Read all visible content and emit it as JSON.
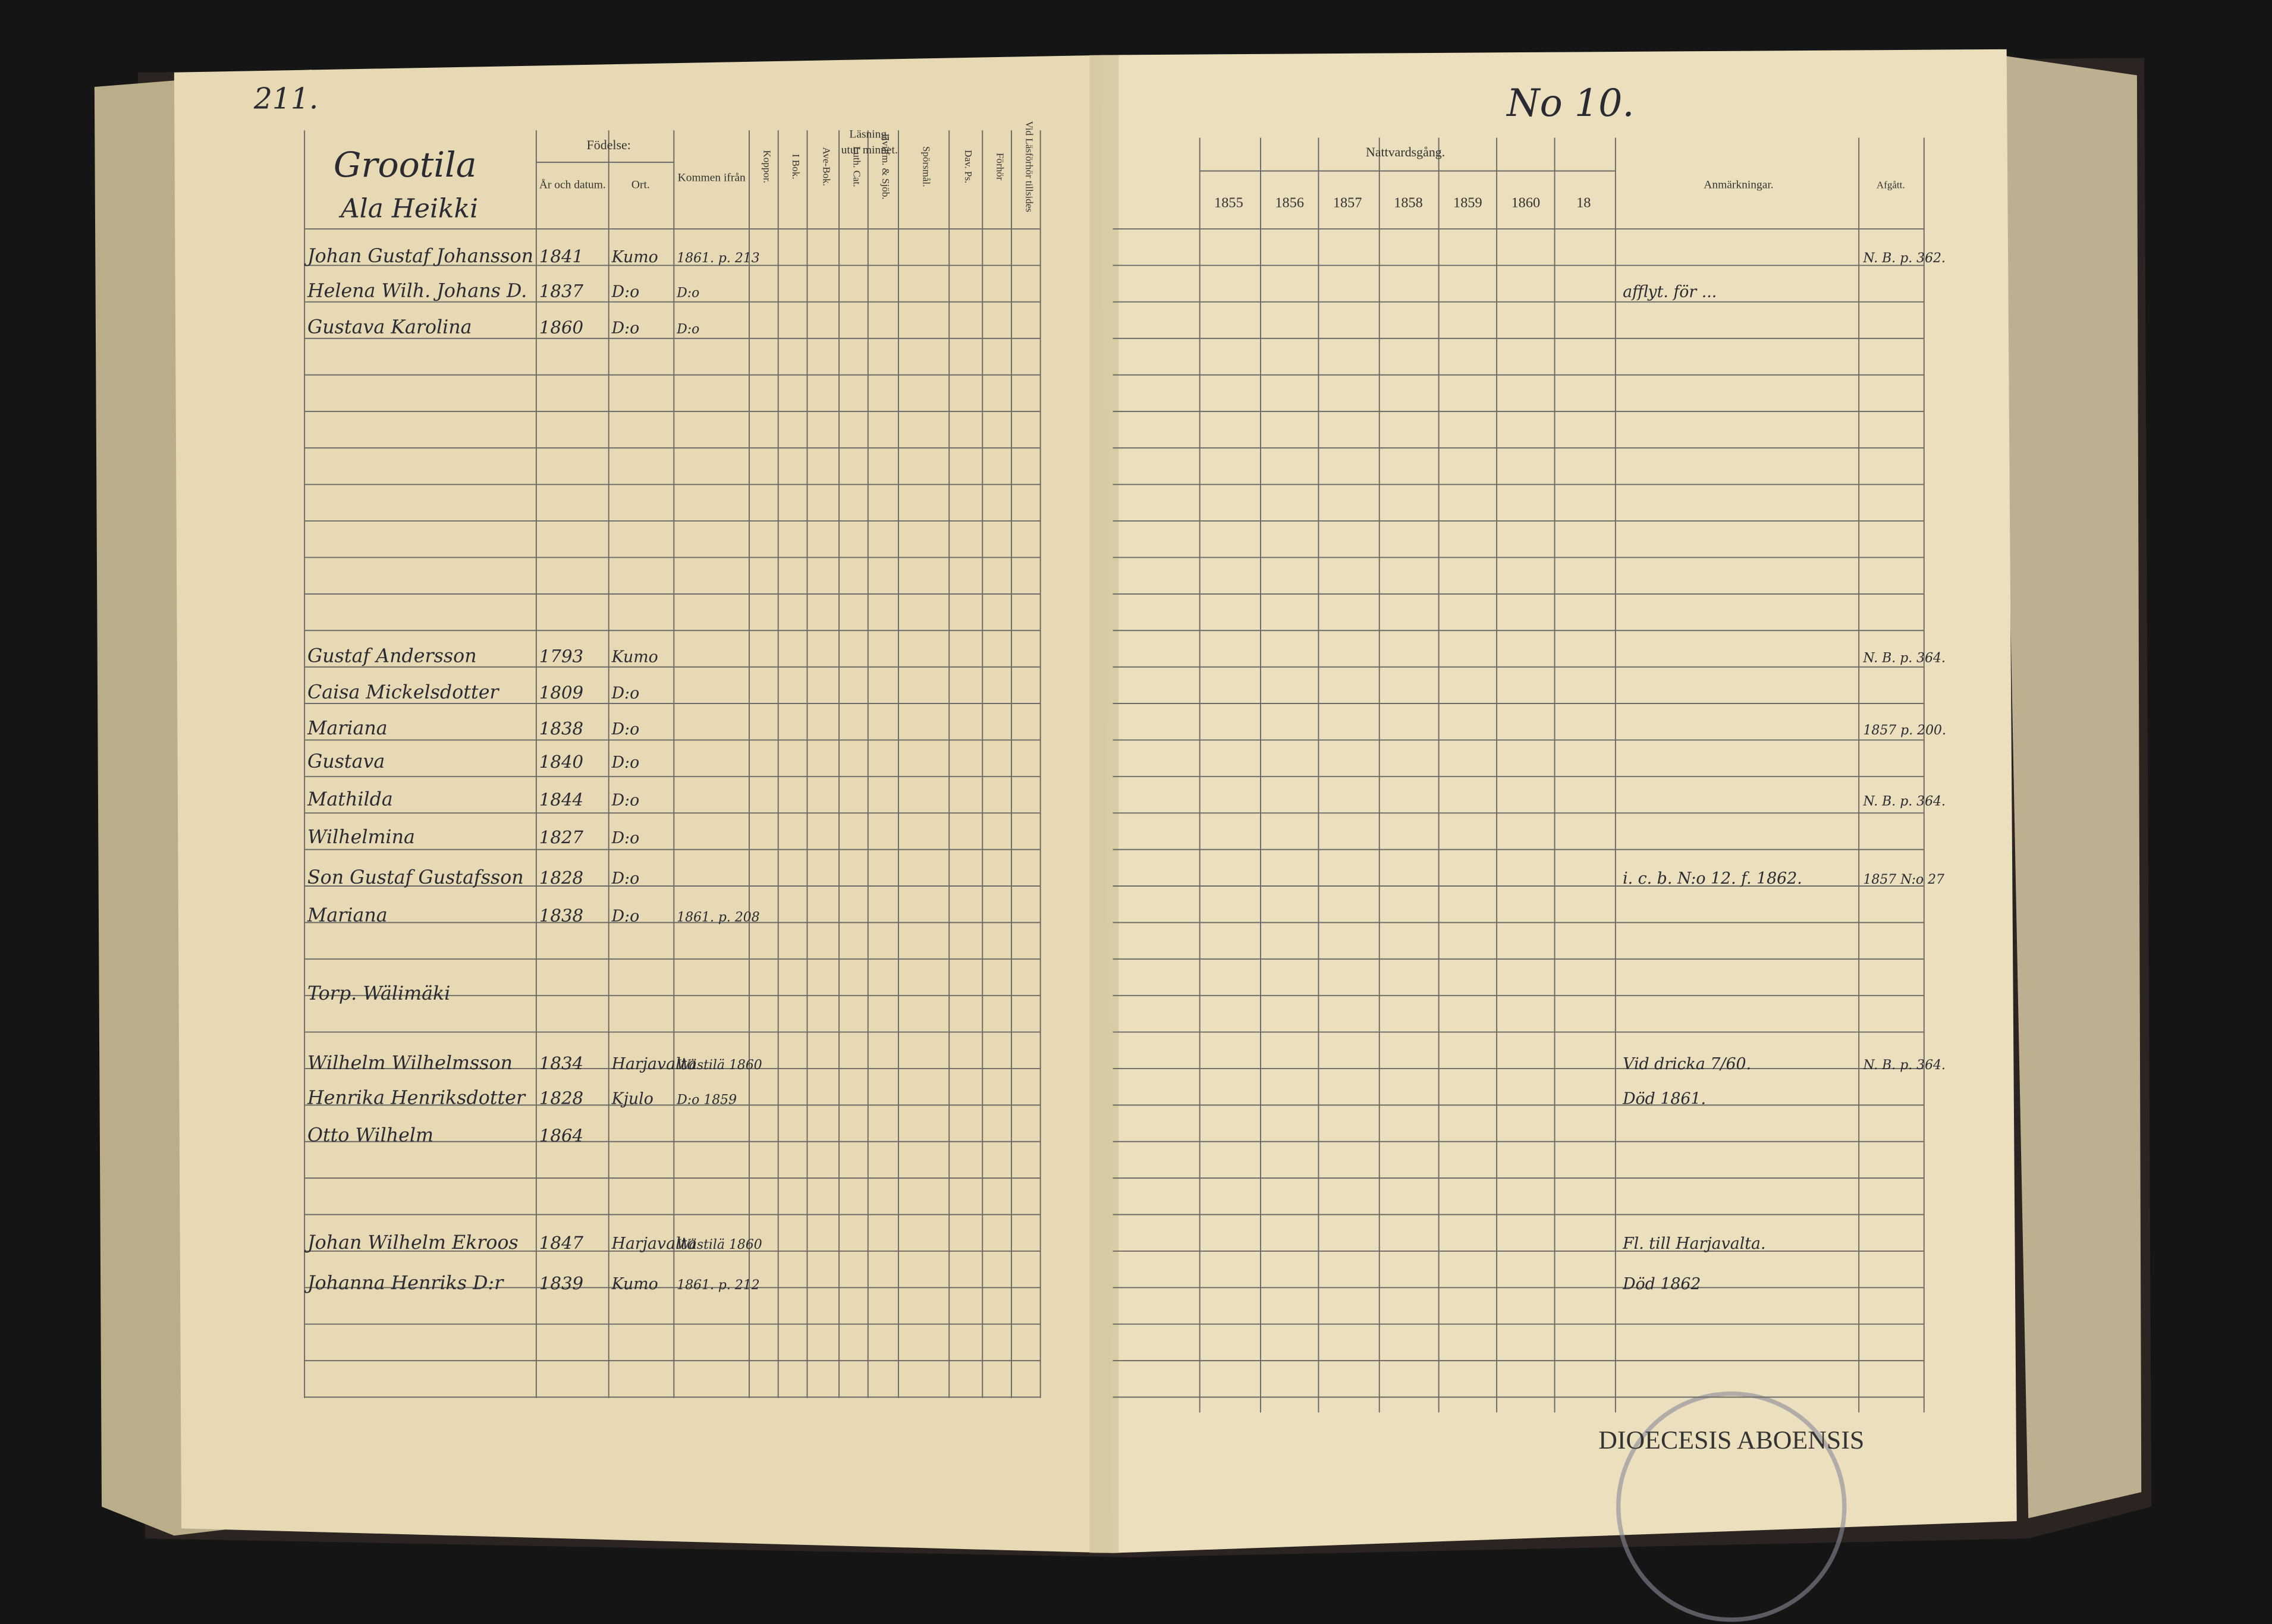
{
  "left_page": {
    "page_number": "211.",
    "farm": "Grootila",
    "subtitle": "Ala Heikki",
    "headers": {
      "birth": "Födelse:",
      "date": "År och datum.",
      "place": "Ort.",
      "from": "Kommen ifrån",
      "pox": "Koppor.",
      "reading": "Läsning,",
      "memory": "utur minnet.",
      "book": "I Bok.",
      "ave": "Ave-Bok.",
      "cat": "Luth. Cat.",
      "hvil": "Hvilfm. & Sjöb.",
      "questions": "Spörsmål.",
      "dav": "Dav. Ps.",
      "hearing": "Förhör",
      "exam": "Vid Läsförhör tillsides"
    },
    "rows": [
      {
        "name": "Johan Gustaf Johansson",
        "birth": "1841",
        "place": "Kumo",
        "from": "1861. p. 213"
      },
      {
        "name": "Helena Wilh. Johans D.",
        "birth": "1837",
        "place": "D:o",
        "from": "D:o"
      },
      {
        "name": "Gustava Karolina",
        "birth": "1860",
        "place": "D:o",
        "from": "D:o"
      },
      {
        "name": "Gustaf Andersson",
        "birth": "1793",
        "place": "Kumo",
        "from": ""
      },
      {
        "name": "Caisa Mickelsdotter",
        "birth": "1809",
        "place": "D:o",
        "from": ""
      },
      {
        "name": "Mariana",
        "birth": "1838",
        "place": "D:o",
        "from": ""
      },
      {
        "name": "Gustava",
        "birth": "1840",
        "place": "D:o",
        "from": ""
      },
      {
        "name": "Mathilda",
        "birth": "1844",
        "place": "D:o",
        "from": ""
      },
      {
        "name": "Wilhelmina",
        "birth": "1827",
        "place": "D:o",
        "from": ""
      },
      {
        "name": "Son Gustaf Gustafsson",
        "birth": "1828",
        "place": "D:o",
        "from": ""
      },
      {
        "name": "Mariana",
        "birth": "1838",
        "place": "D:o",
        "from": "1861. p. 208"
      },
      {
        "name": "Torp. Wälimäki",
        "birth": "",
        "place": "",
        "from": ""
      },
      {
        "name": "Wilhelm Wilhelmsson",
        "birth": "1834",
        "place": "Harjavalta",
        "from": "Wästilä 1860"
      },
      {
        "name": "Henrika Henriksdotter",
        "birth": "1828",
        "place": "Kjulo",
        "from": "D:o 1859"
      },
      {
        "name": "Otto Wilhelm",
        "birth": "1864",
        "place": "",
        "from": ""
      },
      {
        "name": "Johan Wilhelm Ekroos",
        "birth": "1847",
        "place": "Harjavalta",
        "from": "Wästilä 1860"
      },
      {
        "name": "Johanna Henriks D:r",
        "birth": "1839",
        "place": "Kumo",
        "from": "1861. p. 212"
      }
    ]
  },
  "right_page": {
    "number": "No 10.",
    "communion": "Nattvardsgång.",
    "years": [
      "1855",
      "1856",
      "1857",
      "1858",
      "1859",
      "1860",
      "18"
    ],
    "remarks": "Anmärkningar.",
    "departed": "Afgått.",
    "notes": [
      {
        "text": "afflyt. för ...",
        "row": 1
      },
      {
        "text": "N. B. p. 362.",
        "row": 0,
        "col": "dep"
      },
      {
        "text": "N. B. p. 364.",
        "row": 3,
        "col": "dep"
      },
      {
        "text": "1857 p. 200.",
        "row": 5,
        "col": "dep"
      },
      {
        "text": "N. B. p. 364.",
        "row": 7,
        "col": "dep"
      },
      {
        "text": "1857 N:o 27",
        "row": 9,
        "col": "dep"
      },
      {
        "text": "i. c. b. N:o 12. f. 1862.",
        "row": 9
      },
      {
        "text": "N. B. p. 364.",
        "row": 12,
        "col": "dep"
      },
      {
        "text": "Vid dricka 7/60.",
        "row": 12
      },
      {
        "text": "Död 1861.",
        "row": 13
      },
      {
        "text": "Fl. till Harjavalta.",
        "row": 15
      },
      {
        "text": "Död 1862",
        "row": 16
      }
    ]
  },
  "stamp": "DIOECESIS ABOENSIS"
}
